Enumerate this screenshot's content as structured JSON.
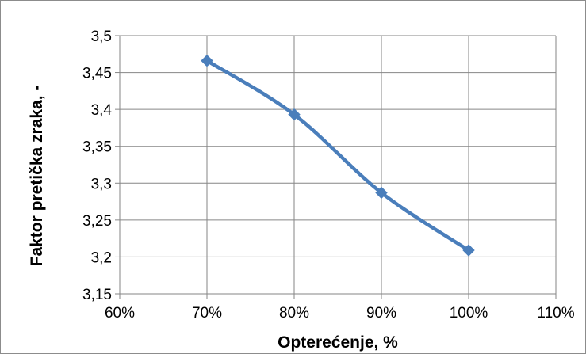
{
  "chart_data": {
    "type": "line",
    "title": "",
    "xlabel": "Opterećenje, %",
    "ylabel": "Faktor pretička zraka, -",
    "x": [
      70,
      80,
      90,
      100
    ],
    "series": [
      {
        "name": "",
        "values": [
          3.466,
          3.393,
          3.287,
          3.209
        ],
        "color": "#4a7ebb"
      }
    ],
    "xlim": [
      60,
      110
    ],
    "ylim": [
      3.15,
      3.5
    ],
    "xticks": [
      60,
      70,
      80,
      90,
      100,
      110
    ],
    "xtick_labels": [
      "60%",
      "70%",
      "80%",
      "90%",
      "100%",
      "110%"
    ],
    "yticks": [
      3.15,
      3.2,
      3.25,
      3.3,
      3.35,
      3.4,
      3.45,
      3.5
    ],
    "ytick_labels": [
      "3,15",
      "3,2",
      "3,25",
      "3,3",
      "3,35",
      "3,4",
      "3,45",
      "3,5"
    ],
    "grid": true,
    "grid_color": "#868686",
    "line_style": "smooth",
    "marker": "diamond",
    "legend": "none"
  }
}
